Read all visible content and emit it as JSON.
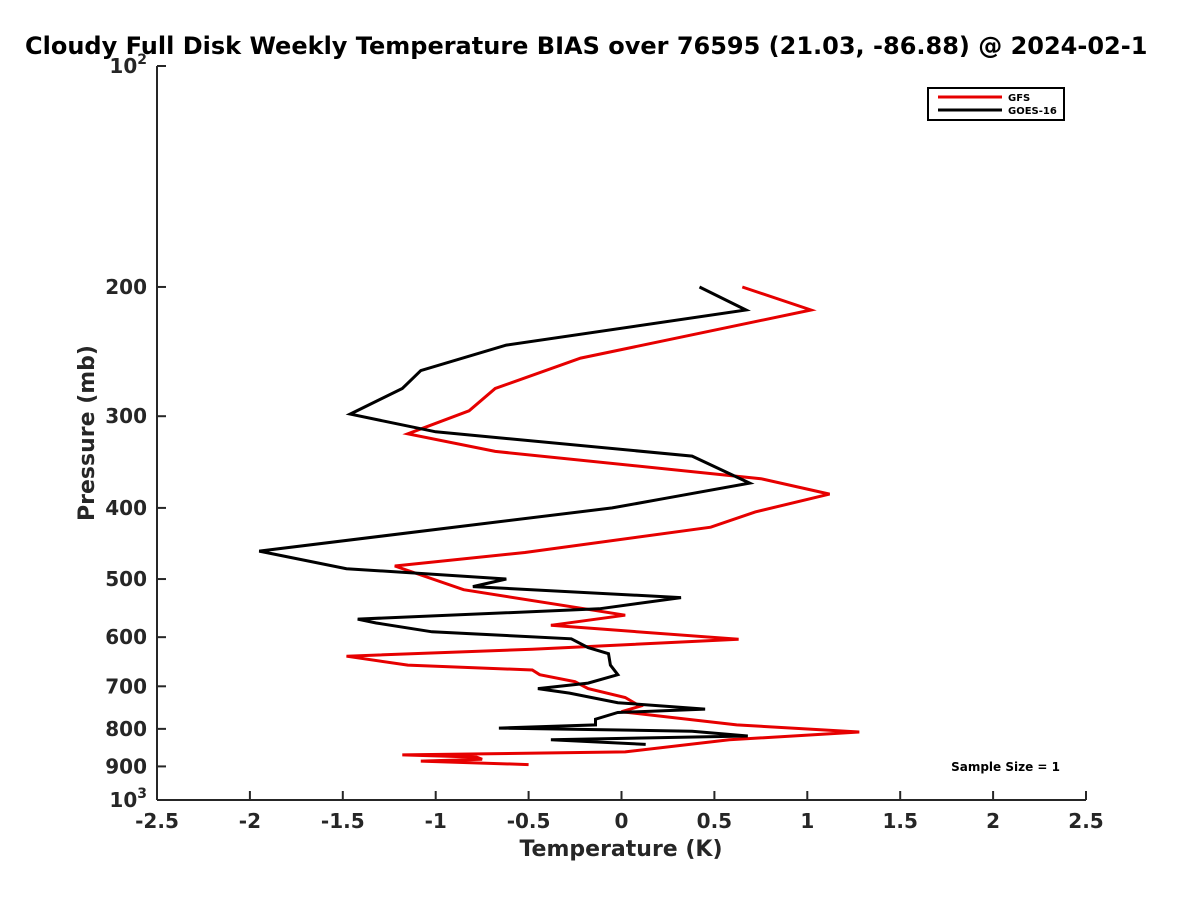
{
  "chart_data": {
    "type": "line",
    "title": "Cloudy Full Disk Weekly Temperature BIAS over 76595 (21.03, -86.88) @ 2024-02-1",
    "xlabel": "Temperature (K)",
    "ylabel": "Pressure (mb)",
    "xlim": [
      -2.5,
      2.5
    ],
    "ylim": [
      100,
      1000
    ],
    "yscale": "log",
    "y_reversed": true,
    "grid": false,
    "legend_position": "top-right",
    "x_ticks": [
      {
        "value": -2.5,
        "label": "-2.5"
      },
      {
        "value": -2,
        "label": "-2"
      },
      {
        "value": -1.5,
        "label": "-1.5"
      },
      {
        "value": -1,
        "label": "-1"
      },
      {
        "value": -0.5,
        "label": "-0.5"
      },
      {
        "value": 0,
        "label": "0"
      },
      {
        "value": 0.5,
        "label": "0.5"
      },
      {
        "value": 1,
        "label": "1"
      },
      {
        "value": 1.5,
        "label": "1.5"
      },
      {
        "value": 2,
        "label": "2"
      },
      {
        "value": 2.5,
        "label": "2.5"
      }
    ],
    "y_ticks": [
      {
        "value": 100,
        "base": "10",
        "exp": "2"
      },
      {
        "value": 200,
        "label": "200"
      },
      {
        "value": 300,
        "label": "300"
      },
      {
        "value": 400,
        "label": "400"
      },
      {
        "value": 500,
        "label": "500"
      },
      {
        "value": 600,
        "label": "600"
      },
      {
        "value": 700,
        "label": "700"
      },
      {
        "value": 800,
        "label": "800"
      },
      {
        "value": 900,
        "label": "900"
      },
      {
        "value": 1000,
        "base": "10",
        "exp": "3"
      }
    ],
    "series": [
      {
        "name": "GFS",
        "color": "#e60000",
        "points": [
          [
            0.65,
            200
          ],
          [
            1.02,
            215
          ],
          [
            -0.22,
            250
          ],
          [
            -0.68,
            275
          ],
          [
            -0.82,
            295
          ],
          [
            -1.15,
            317
          ],
          [
            -0.68,
            335
          ],
          [
            0.75,
            365
          ],
          [
            1.12,
            383
          ],
          [
            0.72,
            405
          ],
          [
            0.48,
            425
          ],
          [
            -0.52,
            460
          ],
          [
            -1.22,
            480
          ],
          [
            -0.85,
            517
          ],
          [
            0.02,
            560
          ],
          [
            -0.38,
            578
          ],
          [
            0.63,
            604
          ],
          [
            -0.48,
            623
          ],
          [
            -1.48,
            637
          ],
          [
            -1.15,
            655
          ],
          [
            -0.48,
            665
          ],
          [
            -0.44,
            675
          ],
          [
            -0.25,
            690
          ],
          [
            -0.18,
            705
          ],
          [
            0.02,
            725
          ],
          [
            0.1,
            745
          ],
          [
            0,
            758
          ],
          [
            0.62,
            790
          ],
          [
            1.28,
            808
          ],
          [
            0.58,
            828
          ],
          [
            0.02,
            860
          ],
          [
            -1.18,
            868
          ],
          [
            -0.78,
            874
          ],
          [
            -0.75,
            880
          ],
          [
            -1.08,
            885
          ],
          [
            -0.5,
            895
          ]
        ]
      },
      {
        "name": "GOES-16",
        "color": "#000000",
        "points": [
          [
            0.42,
            200
          ],
          [
            0.67,
            215
          ],
          [
            -0.62,
            240
          ],
          [
            -1.08,
            260
          ],
          [
            -1.18,
            275
          ],
          [
            -1.46,
            298
          ],
          [
            -1.0,
            315
          ],
          [
            0.38,
            340
          ],
          [
            0.69,
            370
          ],
          [
            0.24,
            388
          ],
          [
            -0.05,
            400
          ],
          [
            -1.95,
            458
          ],
          [
            -1.48,
            484
          ],
          [
            -0.62,
            500
          ],
          [
            -0.8,
            512
          ],
          [
            0.32,
            530
          ],
          [
            -0.12,
            549
          ],
          [
            -1.42,
            567
          ],
          [
            -1.32,
            574
          ],
          [
            -1.02,
            590
          ],
          [
            -0.27,
            603
          ],
          [
            -0.18,
            620
          ],
          [
            -0.07,
            632
          ],
          [
            -0.06,
            655
          ],
          [
            -0.02,
            675
          ],
          [
            -0.18,
            693
          ],
          [
            -0.45,
            705
          ],
          [
            -0.28,
            715
          ],
          [
            -0.02,
            737
          ],
          [
            0.45,
            752
          ],
          [
            -0.02,
            760
          ],
          [
            -0.14,
            776
          ],
          [
            -0.14,
            790
          ],
          [
            -0.66,
            798
          ],
          [
            0.38,
            806
          ],
          [
            0.68,
            818
          ],
          [
            -0.38,
            828
          ],
          [
            0.13,
            840
          ]
        ]
      }
    ],
    "annotation": "Sample Size = 1"
  }
}
